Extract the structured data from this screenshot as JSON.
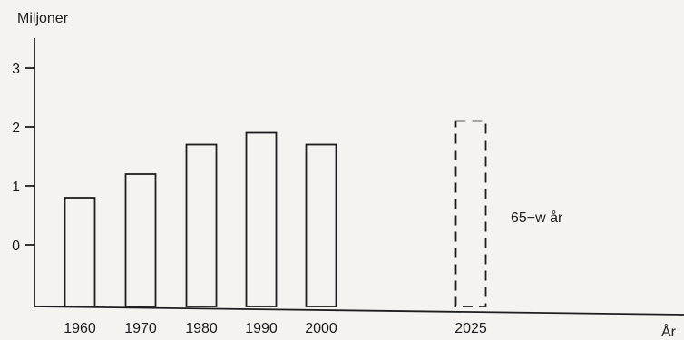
{
  "chart_data": {
    "type": "bar",
    "ylabel": "Miljoner",
    "xlabel": "År",
    "yticks": [
      0,
      1,
      2,
      3
    ],
    "categories": [
      "1960",
      "1970",
      "1980",
      "1990",
      "2000",
      "2025"
    ],
    "values": [
      0.8,
      1.2,
      1.7,
      1.9,
      1.7,
      2.1
    ],
    "projected": [
      false,
      false,
      false,
      false,
      false,
      true
    ],
    "annotation": "65−w år",
    "grid": false,
    "colors": {
      "ink": "#1e1e1e",
      "paper": "#f4f3ef"
    }
  }
}
